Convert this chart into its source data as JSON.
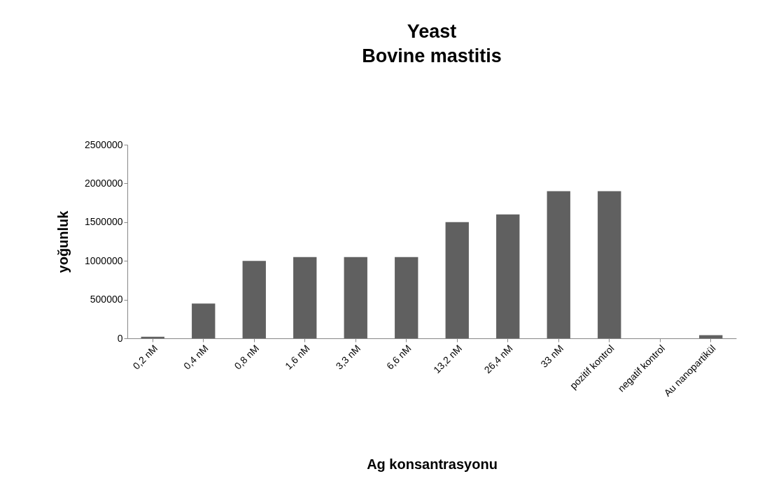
{
  "chart_data": {
    "type": "bar",
    "title": "Yeast",
    "subtitle": "Bovine mastitis",
    "xlabel": "Ag konsantrasyonu",
    "ylabel": "yoğunluk",
    "categories": [
      "0,2 nM",
      "0,4 nM",
      "0,8 nM",
      "1,6 nM",
      "3,3 nM",
      "6,6 nM",
      "13,2 nM",
      "26,4 nM",
      "33 nM",
      "pozitif kontrol",
      "negatif kontrol",
      "Au nanopartikül"
    ],
    "values": [
      20000,
      450000,
      1000000,
      1050000,
      1050000,
      1050000,
      1500000,
      1600000,
      1900000,
      1900000,
      0,
      40000
    ],
    "color": "#606060",
    "ylim": [
      0,
      2500000
    ],
    "yticks": [
      0,
      500000,
      1000000,
      1500000,
      2000000,
      2500000
    ],
    "grid": false
  }
}
